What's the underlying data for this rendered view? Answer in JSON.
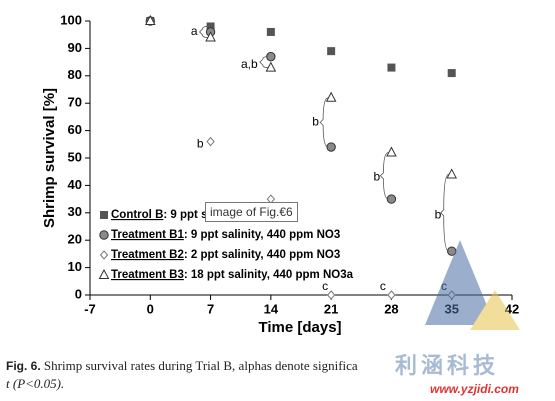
{
  "chart_data": {
    "type": "scatter",
    "y_label": "Shrimp survival [%]",
    "x_label": "Time [days]",
    "xlim": [
      -7,
      42
    ],
    "xticks": [
      -7,
      0,
      7,
      14,
      21,
      28,
      35,
      42
    ],
    "ylim": [
      0,
      100
    ],
    "yticks": [
      0,
      10,
      20,
      30,
      40,
      50,
      60,
      70,
      80,
      90,
      100
    ],
    "series": [
      {
        "name": "Control B",
        "legend_detail": ": 9 ppt sa",
        "marker": "square",
        "color": "#555555",
        "x": [
          0,
          7,
          14,
          21,
          28,
          35
        ],
        "values": [
          100,
          98,
          96,
          89,
          83,
          81
        ]
      },
      {
        "name": "Treatment B1",
        "legend_detail": ": 9 ppt salinity, 440 ppm NO3",
        "marker": "circle",
        "color": "#8a8a8a",
        "x": [
          0,
          7,
          14,
          21,
          28,
          35
        ],
        "values": [
          100,
          96,
          87,
          54,
          35,
          16
        ]
      },
      {
        "name": "Treatment B2",
        "legend_detail": ": 2 ppt salinity, 440 ppm NO3",
        "marker": "diamond",
        "color": "#ffffff",
        "x": [
          0,
          7,
          14,
          21,
          28,
          35
        ],
        "values": [
          100,
          56,
          35,
          0,
          0,
          0
        ]
      },
      {
        "name": "Treatment B3",
        "legend_detail": ": 18 ppt salinity, 440 ppm NO3a",
        "marker": "triangle",
        "color": "#ffffff",
        "x": [
          0,
          7,
          14,
          21,
          28,
          35
        ],
        "values": [
          100,
          94,
          83,
          72,
          52,
          44
        ]
      }
    ],
    "annotations": [
      {
        "text": "a",
        "x": 5.1,
        "y": 96
      },
      {
        "text": "a,b",
        "x": 11.5,
        "y": 84
      },
      {
        "text": "b",
        "x": 5.8,
        "y": 55
      },
      {
        "text": "b",
        "x": 19.2,
        "y": 63
      },
      {
        "text": "b",
        "x": 26.3,
        "y": 43
      },
      {
        "text": "b",
        "x": 33.4,
        "y": 29
      },
      {
        "text": "c",
        "x": 20.3,
        "y": 3
      },
      {
        "text": "c",
        "x": 27.0,
        "y": 3
      },
      {
        "text": "c",
        "x": 34.1,
        "y": 3
      }
    ]
  },
  "tooltip": "image of Fig.€6",
  "caption": {
    "label": "Fig. 6.",
    "text": "Shrimp survival rates during Trial B, alphas denote significa",
    "line2": "t (P<0.05)."
  },
  "watermark": {
    "brand": "利涵科技",
    "url": "www.yzjidi.com"
  }
}
